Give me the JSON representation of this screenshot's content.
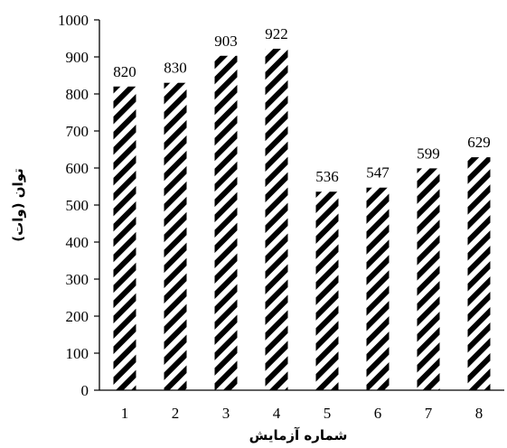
{
  "chart_data": {
    "type": "bar",
    "categories": [
      "1",
      "2",
      "3",
      "4",
      "5",
      "6",
      "7",
      "8"
    ],
    "values": [
      820,
      830,
      903,
      922,
      536,
      547,
      599,
      629
    ],
    "xlabel": "شماره آزمایش",
    "ylabel": "توان (وات)",
    "ylim": [
      0,
      1000
    ],
    "yticks": [
      "0",
      "100",
      "200",
      "300",
      "400",
      "500",
      "600",
      "700",
      "800",
      "900",
      "1000"
    ],
    "grid": false,
    "legend": "none",
    "bar_fill": "black-white diagonal hatch",
    "colors": {
      "ink": "#000000",
      "background": "#ffffff"
    }
  }
}
